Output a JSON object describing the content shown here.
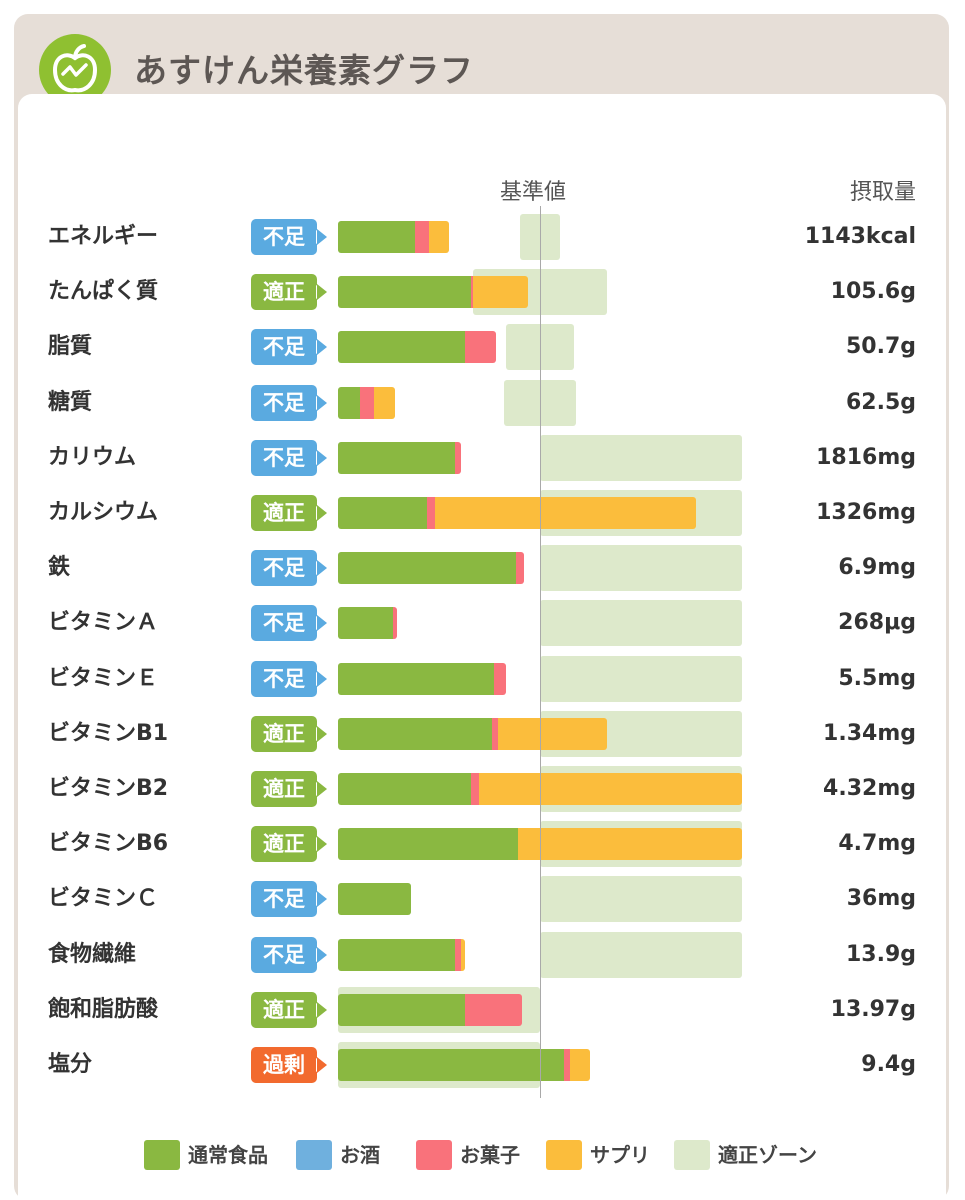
{
  "header": {
    "title": "あすけん栄養素グラフ"
  },
  "columns": {
    "reference": "基準値",
    "intake": "摂取量"
  },
  "status_colors": {
    "不足": "#5aaae0",
    "適正": "#8ab841",
    "過剰": "#f26a2e"
  },
  "legend": [
    {
      "label": "通常食品",
      "color": "#8ab841"
    },
    {
      "label": "お酒",
      "color": "#6fb0de"
    },
    {
      "label": "お菓子",
      "color": "#f9727b"
    },
    {
      "label": "サプリ",
      "color": "#fbbd3c"
    },
    {
      "label": "適正ゾーン",
      "color": "#dde9cb"
    }
  ],
  "chart_data": {
    "type": "bar",
    "orientation": "horizontal",
    "stacked": true,
    "title": "あすけん栄養素グラフ",
    "reference_label": "基準値",
    "value_label": "摂取量",
    "note": "values are percent of the 基準値 (100 = reference line)",
    "series_names": [
      "通常食品",
      "お酒",
      "お菓子",
      "サプリ"
    ],
    "rows": [
      {
        "label": "エネルギー",
        "status": "不足",
        "intake": "1143kcal",
        "zone": [
          -10,
          10
        ],
        "segments": [
          38,
          0,
          7,
          10
        ]
      },
      {
        "label": "たんぱく質",
        "status": "適正",
        "intake": "105.6g",
        "zone": [
          -33,
          33
        ],
        "segments": [
          66,
          0,
          1,
          27
        ]
      },
      {
        "label": "脂質",
        "status": "不足",
        "intake": "50.7g",
        "zone": [
          -17,
          17
        ],
        "segments": [
          63,
          0,
          15,
          0
        ]
      },
      {
        "label": "糖質",
        "status": "不足",
        "intake": "62.5g",
        "zone": [
          -18,
          18
        ],
        "segments": [
          11,
          0,
          7,
          10
        ]
      },
      {
        "label": "カリウム",
        "status": "不足",
        "intake": "1816mg",
        "zone": [
          0,
          100
        ],
        "segments": [
          58,
          0,
          3,
          0
        ]
      },
      {
        "label": "カルシウム",
        "status": "適正",
        "intake": "1326mg",
        "zone": [
          0,
          100
        ],
        "segments": [
          44,
          0,
          4,
          129
        ]
      },
      {
        "label": "鉄",
        "status": "不足",
        "intake": "6.9mg",
        "zone": [
          0,
          100
        ],
        "segments": [
          88,
          0,
          4,
          0
        ]
      },
      {
        "label": "ビタミンＡ",
        "status": "不足",
        "intake": "268μg",
        "zone": [
          0,
          100
        ],
        "segments": [
          27,
          0,
          2,
          0
        ]
      },
      {
        "label": "ビタミンＥ",
        "status": "不足",
        "intake": "5.5mg",
        "zone": [
          0,
          100
        ],
        "segments": [
          77,
          0,
          6,
          0
        ]
      },
      {
        "label": "ビタミンB1",
        "status": "適正",
        "intake": "1.34mg",
        "zone": [
          0,
          100
        ],
        "segments": [
          76,
          0,
          3,
          54
        ]
      },
      {
        "label": "ビタミンB2",
        "status": "適正",
        "intake": "4.32mg",
        "zone": [
          0,
          100
        ],
        "segments": [
          66,
          0,
          4,
          130
        ]
      },
      {
        "label": "ビタミンB6",
        "status": "適正",
        "intake": "4.7mg",
        "zone": [
          0,
          100
        ],
        "segments": [
          89,
          0,
          0,
          111
        ]
      },
      {
        "label": "ビタミンＣ",
        "status": "不足",
        "intake": "36mg",
        "zone": [
          0,
          100
        ],
        "segments": [
          36,
          0,
          0,
          0
        ]
      },
      {
        "label": "食物繊維",
        "status": "不足",
        "intake": "13.9g",
        "zone": [
          0,
          100
        ],
        "segments": [
          58,
          0,
          3,
          2
        ]
      },
      {
        "label": "飽和脂肪酸",
        "status": "適正",
        "intake": "13.97g",
        "zone": [
          -100,
          0
        ],
        "segments": [
          63,
          0,
          28,
          0
        ]
      },
      {
        "label": "塩分",
        "status": "過剰",
        "intake": "9.4g",
        "zone": [
          -100,
          0
        ],
        "segments": [
          112,
          0,
          3,
          10
        ]
      }
    ]
  }
}
